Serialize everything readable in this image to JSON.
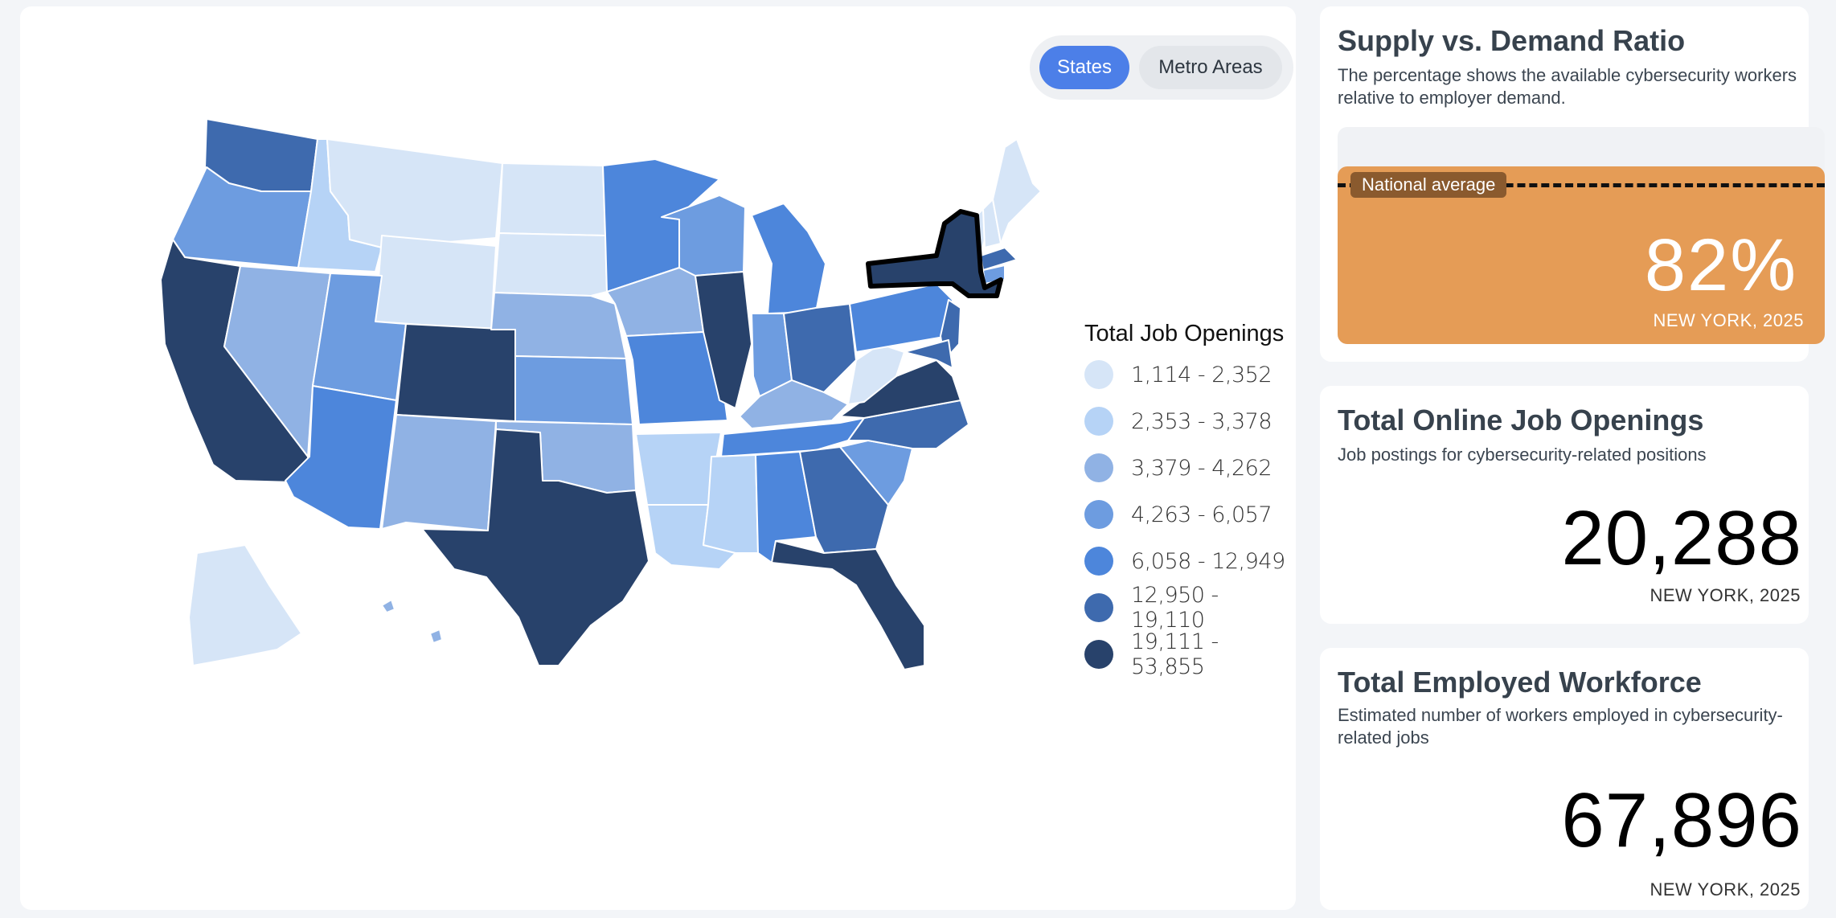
{
  "toggle": {
    "states_label": "States",
    "metro_label": "Metro Areas"
  },
  "legend": {
    "title": "Total Job Openings",
    "items": [
      {
        "label": "1,114 - 2,352",
        "color": "#d6e5f7"
      },
      {
        "label": "2,353 - 3,378",
        "color": "#b6d3f6"
      },
      {
        "label": "3,379 - 4,262",
        "color": "#90b2e4"
      },
      {
        "label": "4,263 - 6,057",
        "color": "#6d9ce0"
      },
      {
        "label": "6,058 - 12,949",
        "color": "#4d86db"
      },
      {
        "label": "12,950 - 19,110",
        "color": "#3e6aae"
      },
      {
        "label": "19,111 - 53,855",
        "color": "#28426b"
      }
    ]
  },
  "ratio_card": {
    "title": "Supply vs. Demand Ratio",
    "description": "The percentage shows the available cybersecurity workers relative to employer demand.",
    "national_average_label": "National average",
    "value": "82%",
    "location": "NEW YORK, 2025",
    "fill_fraction": 0.82,
    "fill_color": "#e59c56"
  },
  "openings_card": {
    "title": "Total Online Job Openings",
    "description": "Job postings for cybersecurity-related positions",
    "value": "20,288",
    "location": "NEW YORK, 2025"
  },
  "workforce_card": {
    "title": "Total Employed Workforce",
    "description": "Estimated number of workers employed in cybersecurity-related jobs",
    "value": "67,896",
    "location": "NEW YORK, 2025"
  },
  "map": {
    "selected_state": "New York",
    "states": [
      {
        "name": "Washington",
        "tier": 5
      },
      {
        "name": "Oregon",
        "tier": 3
      },
      {
        "name": "California",
        "tier": 6
      },
      {
        "name": "Idaho",
        "tier": 1
      },
      {
        "name": "Nevada",
        "tier": 2
      },
      {
        "name": "Montana",
        "tier": 0
      },
      {
        "name": "Wyoming",
        "tier": 0
      },
      {
        "name": "Utah",
        "tier": 3
      },
      {
        "name": "Arizona",
        "tier": 4
      },
      {
        "name": "Colorado",
        "tier": 6
      },
      {
        "name": "New Mexico",
        "tier": 2
      },
      {
        "name": "North Dakota",
        "tier": 0
      },
      {
        "name": "South Dakota",
        "tier": 0
      },
      {
        "name": "Nebraska",
        "tier": 2
      },
      {
        "name": "Kansas",
        "tier": 3
      },
      {
        "name": "Oklahoma",
        "tier": 2
      },
      {
        "name": "Texas",
        "tier": 6
      },
      {
        "name": "Minnesota",
        "tier": 4
      },
      {
        "name": "Iowa",
        "tier": 2
      },
      {
        "name": "Missouri",
        "tier": 4
      },
      {
        "name": "Arkansas",
        "tier": 1
      },
      {
        "name": "Louisiana",
        "tier": 1
      },
      {
        "name": "Wisconsin",
        "tier": 3
      },
      {
        "name": "Illinois",
        "tier": 6
      },
      {
        "name": "Michigan",
        "tier": 4
      },
      {
        "name": "Indiana",
        "tier": 3
      },
      {
        "name": "Ohio",
        "tier": 5
      },
      {
        "name": "Kentucky",
        "tier": 2
      },
      {
        "name": "Tennessee",
        "tier": 4
      },
      {
        "name": "Mississippi",
        "tier": 1
      },
      {
        "name": "Alabama",
        "tier": 4
      },
      {
        "name": "Georgia",
        "tier": 5
      },
      {
        "name": "Florida",
        "tier": 6
      },
      {
        "name": "South Carolina",
        "tier": 3
      },
      {
        "name": "North Carolina",
        "tier": 5
      },
      {
        "name": "Virginia",
        "tier": 6
      },
      {
        "name": "West Virginia",
        "tier": 0
      },
      {
        "name": "Pennsylvania",
        "tier": 4
      },
      {
        "name": "New York",
        "tier": 6
      },
      {
        "name": "Maine",
        "tier": 0
      },
      {
        "name": "Vermont",
        "tier": 0
      },
      {
        "name": "New Hampshire",
        "tier": 0
      },
      {
        "name": "Massachusetts",
        "tier": 5
      },
      {
        "name": "Alaska",
        "tier": 0
      },
      {
        "name": "Hawaii",
        "tier": 2
      }
    ]
  }
}
